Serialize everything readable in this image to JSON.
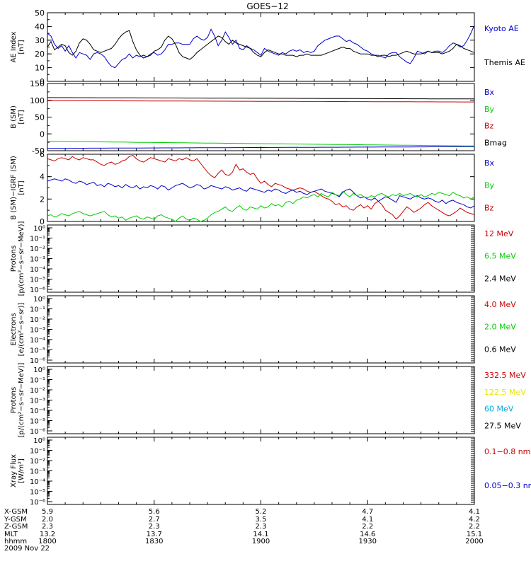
{
  "title": "GOES−12",
  "footer": {
    "rows": [
      {
        "label": "X-GSM",
        "values": [
          "5.9",
          "5.6",
          "5.2",
          "4.7",
          "4.1"
        ]
      },
      {
        "label": "Y-GSM",
        "values": [
          "2.0",
          "2.7",
          "3.5",
          "4.1",
          "4.2"
        ]
      },
      {
        "label": "Z-GSM",
        "values": [
          "2.3",
          "2.3",
          "2.3",
          "2.2",
          "2.2"
        ]
      },
      {
        "label": "MLT",
        "values": [
          "13.2",
          "13.7",
          "14.1",
          "14.6",
          "15.1"
        ]
      },
      {
        "label": "hhmm",
        "values": [
          "1800",
          "1830",
          "1900",
          "1930",
          "2000"
        ]
      }
    ],
    "date": "2009 Nov 22"
  },
  "chart_data": [
    {
      "type": "line",
      "ylabel": "AE Index\n[nT]",
      "ylim": [
        0,
        50
      ],
      "yticks": [
        0,
        10,
        20,
        30,
        40,
        50
      ],
      "xlim": [
        0,
        120
      ],
      "legend": [
        {
          "name": "Kyoto AE",
          "color": "#0000cc"
        },
        {
          "name": "Themis AE",
          "color": "#000000"
        }
      ],
      "series": [
        {
          "name": "Kyoto AE",
          "color": "#0000cc",
          "y": [
            35,
            33,
            27,
            24,
            26,
            22,
            26,
            21,
            17,
            21,
            20,
            19,
            16,
            20,
            21,
            20,
            18,
            14,
            11,
            10,
            13,
            16,
            17,
            20,
            17,
            19,
            18,
            19,
            18,
            20,
            21,
            19,
            20,
            23,
            27,
            27,
            28,
            28,
            27,
            27,
            27,
            31,
            33,
            31,
            30,
            32,
            38,
            33,
            26,
            30,
            36,
            32,
            27,
            30,
            24,
            23,
            26,
            24,
            23,
            21,
            19,
            24,
            22,
            21,
            20,
            19,
            21,
            20,
            22,
            23,
            22,
            23,
            21,
            22,
            21,
            22,
            26,
            28,
            30,
            31,
            32,
            33,
            33,
            31,
            29,
            30,
            28,
            27,
            25,
            23,
            22,
            20,
            19,
            19,
            18,
            17,
            20,
            21,
            21,
            18,
            16,
            14,
            13,
            17,
            22,
            21,
            20,
            22,
            21,
            22,
            22,
            21,
            23,
            26,
            28,
            27,
            25,
            26,
            30,
            35,
            41
          ]
        },
        {
          "name": "Themis AE",
          "color": "#000000",
          "y": [
            25,
            29,
            23,
            25,
            27,
            26,
            21,
            19,
            22,
            28,
            31,
            30,
            27,
            23,
            22,
            21,
            22,
            23,
            24,
            27,
            31,
            34,
            36,
            37,
            29,
            23,
            19,
            17,
            18,
            19,
            22,
            23,
            25,
            30,
            33,
            31,
            27,
            21,
            18,
            17,
            16,
            18,
            21,
            23,
            25,
            27,
            29,
            31,
            33,
            32,
            29,
            27,
            30,
            28,
            27,
            26,
            25,
            24,
            21,
            19,
            18,
            21,
            23,
            22,
            21,
            20,
            20,
            19,
            19,
            19,
            18,
            19,
            19,
            20,
            19,
            19,
            19,
            19,
            20,
            21,
            22,
            23,
            24,
            25,
            24,
            24,
            22,
            21,
            20,
            20,
            20,
            19,
            19,
            18,
            19,
            19,
            18,
            19,
            19,
            20,
            21,
            22,
            21,
            20,
            20,
            20,
            21,
            22,
            21,
            21,
            21,
            20,
            21,
            22,
            24,
            27,
            26,
            24,
            23,
            22,
            21
          ]
        }
      ]
    },
    {
      "type": "line",
      "ylabel": "B (SM)\n[nT]",
      "ylim": [
        -50,
        150
      ],
      "yticks": [
        -50,
        0,
        50,
        100,
        150
      ],
      "xlim": [
        0,
        120
      ],
      "legend": [
        {
          "name": "Bx",
          "color": "#0000cc"
        },
        {
          "name": "By",
          "color": "#00cc00"
        },
        {
          "name": "Bz",
          "color": "#cc0000"
        },
        {
          "name": "Bmag",
          "color": "#000000"
        }
      ],
      "series": [
        {
          "name": "Bmag",
          "color": "#000000",
          "y_start": 108,
          "y_end": 104
        },
        {
          "name": "Bz",
          "color": "#cc0000",
          "y_start": 99,
          "y_end": 95
        },
        {
          "name": "By",
          "color": "#00cc00",
          "y_start": -22,
          "y_end": -36
        },
        {
          "name": "Bx",
          "color": "#0000cc",
          "y_start": -43,
          "y_end": -38
        }
      ]
    },
    {
      "type": "line",
      "ylabel": "B (SM)−IGRF (SM)\n[nT]",
      "ylim": [
        0,
        6
      ],
      "yticks": [
        0,
        2,
        4,
        6
      ],
      "xlim": [
        0,
        120
      ],
      "legend": [
        {
          "name": "Bx",
          "color": "#0000cc"
        },
        {
          "name": "By",
          "color": "#00cc00"
        },
        {
          "name": "Bz",
          "color": "#cc0000"
        }
      ],
      "series": [
        {
          "name": "Bz",
          "color": "#cc0000",
          "y": [
            5.6,
            5.5,
            5.4,
            5.6,
            5.7,
            5.6,
            5.5,
            5.8,
            5.6,
            5.5,
            5.7,
            5.6,
            5.5,
            5.5,
            5.3,
            5.1,
            5.0,
            5.2,
            5.3,
            5.1,
            5.2,
            5.4,
            5.5,
            5.8,
            5.9,
            5.6,
            5.4,
            5.3,
            5.5,
            5.7,
            5.6,
            5.5,
            5.4,
            5.3,
            5.6,
            5.5,
            5.4,
            5.6,
            5.5,
            5.7,
            5.5,
            5.4,
            5.6,
            5.2,
            4.8,
            4.4,
            4.1,
            3.9,
            4.3,
            4.6,
            4.2,
            4.1,
            4.4,
            5.1,
            4.6,
            4.7,
            4.4,
            4.2,
            4.3,
            3.8,
            3.4,
            3.6,
            3.3,
            3.1,
            3.4,
            3.3,
            3.2,
            3.0,
            2.9,
            2.8,
            2.9,
            3.0,
            2.9,
            2.7,
            2.6,
            2.7,
            2.5,
            2.3,
            2.1,
            2.0,
            1.8,
            1.5,
            1.6,
            1.3,
            1.4,
            1.1,
            1.0,
            1.3,
            1.5,
            1.2,
            1.4,
            1.1,
            1.6,
            1.8,
            1.5,
            1.0,
            0.8,
            0.6,
            0.2,
            0.5,
            0.9,
            1.3,
            1.1,
            0.8,
            1.0,
            1.2,
            1.5,
            1.7,
            1.4,
            1.2,
            1.0,
            0.8,
            0.6,
            0.5,
            0.7,
            0.9,
            1.2,
            1.0,
            0.8,
            0.7,
            0.6
          ]
        },
        {
          "name": "Bx",
          "color": "#0000cc",
          "y": [
            3.6,
            3.7,
            3.8,
            3.7,
            3.6,
            3.8,
            3.7,
            3.5,
            3.4,
            3.6,
            3.5,
            3.3,
            3.4,
            3.5,
            3.2,
            3.3,
            3.1,
            3.4,
            3.3,
            3.1,
            3.2,
            3.0,
            3.3,
            3.1,
            3.0,
            3.2,
            2.9,
            3.1,
            3.0,
            3.2,
            3.1,
            2.9,
            3.2,
            3.1,
            2.8,
            3.0,
            3.2,
            3.3,
            3.4,
            3.2,
            3.0,
            3.1,
            3.3,
            3.2,
            2.9,
            3.0,
            3.2,
            3.1,
            3.0,
            2.9,
            3.1,
            3.0,
            2.8,
            2.9,
            3.0,
            2.8,
            2.7,
            3.0,
            2.9,
            2.8,
            2.7,
            2.6,
            2.8,
            2.7,
            2.9,
            2.8,
            2.6,
            2.5,
            2.7,
            2.8,
            2.6,
            2.7,
            2.5,
            2.4,
            2.6,
            2.7,
            2.8,
            2.9,
            2.7,
            2.6,
            2.5,
            2.4,
            2.2,
            2.6,
            2.8,
            2.9,
            2.6,
            2.3,
            2.1,
            2.2,
            2.0,
            1.9,
            2.1,
            1.8,
            2.0,
            2.2,
            2.1,
            1.9,
            1.7,
            2.3,
            2.2,
            2.1,
            2.0,
            2.2,
            2.3,
            2.1,
            2.0,
            2.1,
            2.0,
            1.8,
            1.7,
            1.9,
            1.6,
            1.8,
            1.9,
            1.7,
            1.6,
            1.5,
            1.3,
            1.2,
            1.4
          ]
        },
        {
          "name": "By",
          "color": "#00cc00",
          "y": [
            0.5,
            0.6,
            0.4,
            0.5,
            0.7,
            0.6,
            0.5,
            0.7,
            0.8,
            0.9,
            0.7,
            0.6,
            0.5,
            0.6,
            0.7,
            0.8,
            0.9,
            0.6,
            0.4,
            0.5,
            0.3,
            0.4,
            0.1,
            0.3,
            0.4,
            0.5,
            0.3,
            0.2,
            0.4,
            0.3,
            0.2,
            0.5,
            0.6,
            0.4,
            0.3,
            0.2,
            0.0,
            0.3,
            0.5,
            0.2,
            0.1,
            0.3,
            0.2,
            0.0,
            0.1,
            0.3,
            0.6,
            0.8,
            0.9,
            1.1,
            1.3,
            1.0,
            0.9,
            1.2,
            1.4,
            1.1,
            1.0,
            1.3,
            1.2,
            1.1,
            1.4,
            1.2,
            1.3,
            1.6,
            1.4,
            1.5,
            1.3,
            1.7,
            1.8,
            1.6,
            1.9,
            2.0,
            2.2,
            2.1,
            2.3,
            2.4,
            2.2,
            2.5,
            2.3,
            2.2,
            2.6,
            2.4,
            2.3,
            2.7,
            2.4,
            2.2,
            2.5,
            2.3,
            2.4,
            2.2,
            2.1,
            2.3,
            2.2,
            2.4,
            2.5,
            2.3,
            2.2,
            2.4,
            2.3,
            2.5,
            2.3,
            2.4,
            2.5,
            2.3,
            2.2,
            2.4,
            2.2,
            2.3,
            2.5,
            2.4,
            2.6,
            2.5,
            2.4,
            2.3,
            2.6,
            2.4,
            2.3,
            2.1,
            2.2,
            2.0,
            2.2
          ]
        }
      ]
    },
    {
      "type": "line",
      "ylabel": "Protons\n[p/(cm²−s−sr−MeV)]",
      "yscale": "log",
      "yticks": [
        "10⁰",
        "10⁻¹",
        "10⁻²",
        "10⁻³",
        "10⁻⁴",
        "10⁻⁵",
        "10⁻⁶"
      ],
      "legend": [
        {
          "name": "12 MeV",
          "color": "#cc0000"
        },
        {
          "name": "6.5 MeV",
          "color": "#00cc00"
        },
        {
          "name": "2.4 MeV",
          "color": "#000000"
        }
      ],
      "series": []
    },
    {
      "type": "line",
      "ylabel": "Electrons\n[e/(cm²−s−sr)]",
      "yscale": "log",
      "yticks": [
        "10⁰",
        "10⁻¹",
        "10⁻²",
        "10⁻³",
        "10⁻⁴",
        "10⁻⁵",
        "10⁻⁶"
      ],
      "legend": [
        {
          "name": "4.0 MeV",
          "color": "#cc0000"
        },
        {
          "name": "2.0 MeV",
          "color": "#00cc00"
        },
        {
          "name": "0.6 MeV",
          "color": "#000000"
        }
      ],
      "series": []
    },
    {
      "type": "line",
      "ylabel": "Protons\n[p/(cm²−s−sr−MeV)]",
      "yscale": "log",
      "yticks": [
        "10⁰",
        "10⁻¹",
        "10⁻²",
        "10⁻³",
        "10⁻⁴",
        "10⁻⁵",
        "10⁻⁶"
      ],
      "legend": [
        {
          "name": "332.5 MeV",
          "color": "#cc0000"
        },
        {
          "name": "122.5 MeV",
          "color": "#e6e600"
        },
        {
          "name": "60 MeV",
          "color": "#00aadd"
        },
        {
          "name": "27.5 MeV",
          "color": "#000000"
        }
      ],
      "series": []
    },
    {
      "type": "line",
      "ylabel": "Xray Flux\n[W/m²]",
      "yscale": "log",
      "yticks": [
        "10⁰",
        "10⁻¹",
        "10⁻²",
        "10⁻³",
        "10⁻⁴",
        "10⁻⁵",
        "10⁻⁶"
      ],
      "legend": [
        {
          "name": "0.1−0.8 nm",
          "color": "#cc0000"
        },
        {
          "name": "0.05−0.3 nm",
          "color": "#0000cc"
        }
      ],
      "series": []
    }
  ]
}
